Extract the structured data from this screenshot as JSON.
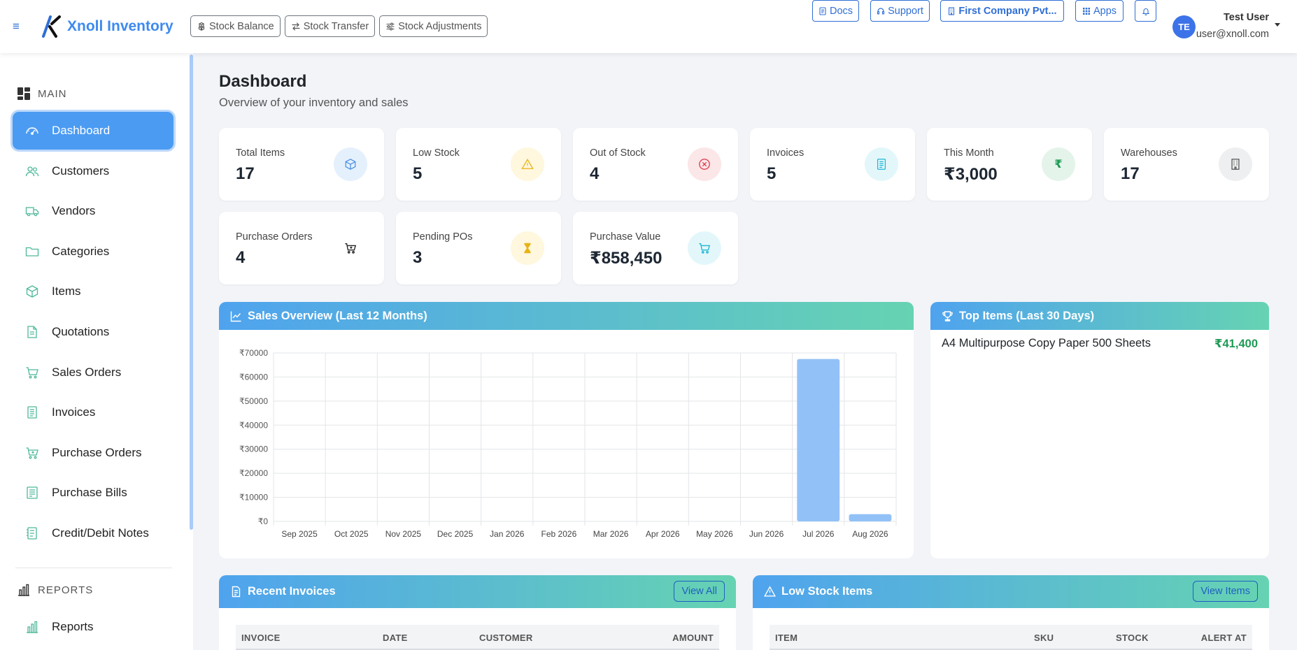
{
  "app": {
    "name": "Xnoll Inventory"
  },
  "quick_links": [
    {
      "label": "Stock Balance",
      "icon": "boxes-icon"
    },
    {
      "label": "Stock Transfer",
      "icon": "arrows-icon"
    },
    {
      "label": "Stock Adjustments",
      "icon": "sliders-icon"
    }
  ],
  "header_actions": {
    "docs": "Docs",
    "support": "Support",
    "company": "First Company Pvt...",
    "apps": "Apps"
  },
  "user": {
    "initials": "TE",
    "name": "Test User",
    "email": "user@xnoll.com"
  },
  "sidebar": {
    "main_title": "MAIN",
    "items": [
      {
        "label": "Dashboard",
        "icon": "speedometer-icon",
        "active": true
      },
      {
        "label": "Customers",
        "icon": "people-icon"
      },
      {
        "label": "Vendors",
        "icon": "truck-icon"
      },
      {
        "label": "Categories",
        "icon": "folder-icon"
      },
      {
        "label": "Items",
        "icon": "box-icon"
      },
      {
        "label": "Quotations",
        "icon": "document-icon"
      },
      {
        "label": "Sales Orders",
        "icon": "cart-icon"
      },
      {
        "label": "Invoices",
        "icon": "receipt-icon"
      },
      {
        "label": "Purchase Orders",
        "icon": "cart-plus-icon"
      },
      {
        "label": "Purchase Bills",
        "icon": "bill-icon"
      },
      {
        "label": "Credit/Debit Notes",
        "icon": "notes-icon"
      }
    ],
    "reports_title": "REPORTS",
    "report_items": [
      {
        "label": "Reports",
        "icon": "bar-chart-icon"
      }
    ]
  },
  "page": {
    "title": "Dashboard",
    "subtitle": "Overview of your inventory and sales"
  },
  "stats": [
    {
      "label": "Total Items",
      "value": "17",
      "icon": "box-icon",
      "color": "#4a90e2",
      "bg": "#e5f0fd"
    },
    {
      "label": "Low Stock",
      "value": "5",
      "icon": "warning-icon",
      "color": "#e7b416",
      "bg": "#fff7de"
    },
    {
      "label": "Out of Stock",
      "value": "4",
      "icon": "x-circle-icon",
      "color": "#dc3545",
      "bg": "#fbe6e8"
    },
    {
      "label": "Invoices",
      "value": "5",
      "icon": "receipt-icon",
      "color": "#1fb6d6",
      "bg": "#e3f7fb"
    },
    {
      "label": "This Month",
      "value": "₹3,000",
      "icon": "rupee-icon",
      "color": "#1e9a55",
      "bg": "#e4f4ea"
    },
    {
      "label": "Warehouses",
      "value": "17",
      "icon": "building-icon",
      "color": "#555",
      "bg": "#eeeff1"
    },
    {
      "label": "Purchase Orders",
      "value": "4",
      "icon": "cart-icon",
      "color": "#222",
      "bg": "#ffffff"
    },
    {
      "label": "Pending POs",
      "value": "3",
      "icon": "hourglass-icon",
      "color": "#e7b416",
      "bg": "#fff7de"
    },
    {
      "label": "Purchase Value",
      "value": "₹858,450",
      "icon": "cart-icon",
      "color": "#1fb6d6",
      "bg": "#e3f7fb"
    }
  ],
  "sales_panel": {
    "title": "Sales Overview (Last 12 Months)"
  },
  "chart_data": {
    "type": "bar",
    "categories": [
      "Sep 2025",
      "Oct 2025",
      "Nov 2025",
      "Dec 2025",
      "Jan 2026",
      "Feb 2026",
      "Mar 2026",
      "Apr 2026",
      "May 2026",
      "Jun 2026",
      "Jul 2026",
      "Aug 2026"
    ],
    "values": [
      0,
      0,
      0,
      0,
      0,
      0,
      0,
      0,
      0,
      0,
      67500,
      3000
    ],
    "y_ticks": [
      "₹0",
      "₹10000",
      "₹20000",
      "₹30000",
      "₹40000",
      "₹50000",
      "₹60000",
      "₹70000"
    ],
    "ylim": [
      0,
      70000
    ],
    "grid": true,
    "color": "#92c1f7"
  },
  "top_items_panel": {
    "title": "Top Items (Last 30 Days)",
    "items": [
      {
        "name": "A4 Multipurpose Copy Paper 500 Sheets",
        "amount": "₹41,400"
      }
    ]
  },
  "recent_invoices": {
    "title": "Recent Invoices",
    "action": "View All",
    "columns": [
      "INVOICE",
      "DATE",
      "CUSTOMER",
      "AMOUNT"
    ]
  },
  "low_stock": {
    "title": "Low Stock Items",
    "action": "View Items",
    "columns": [
      "ITEM",
      "SKU",
      "STOCK",
      "ALERT AT"
    ]
  }
}
